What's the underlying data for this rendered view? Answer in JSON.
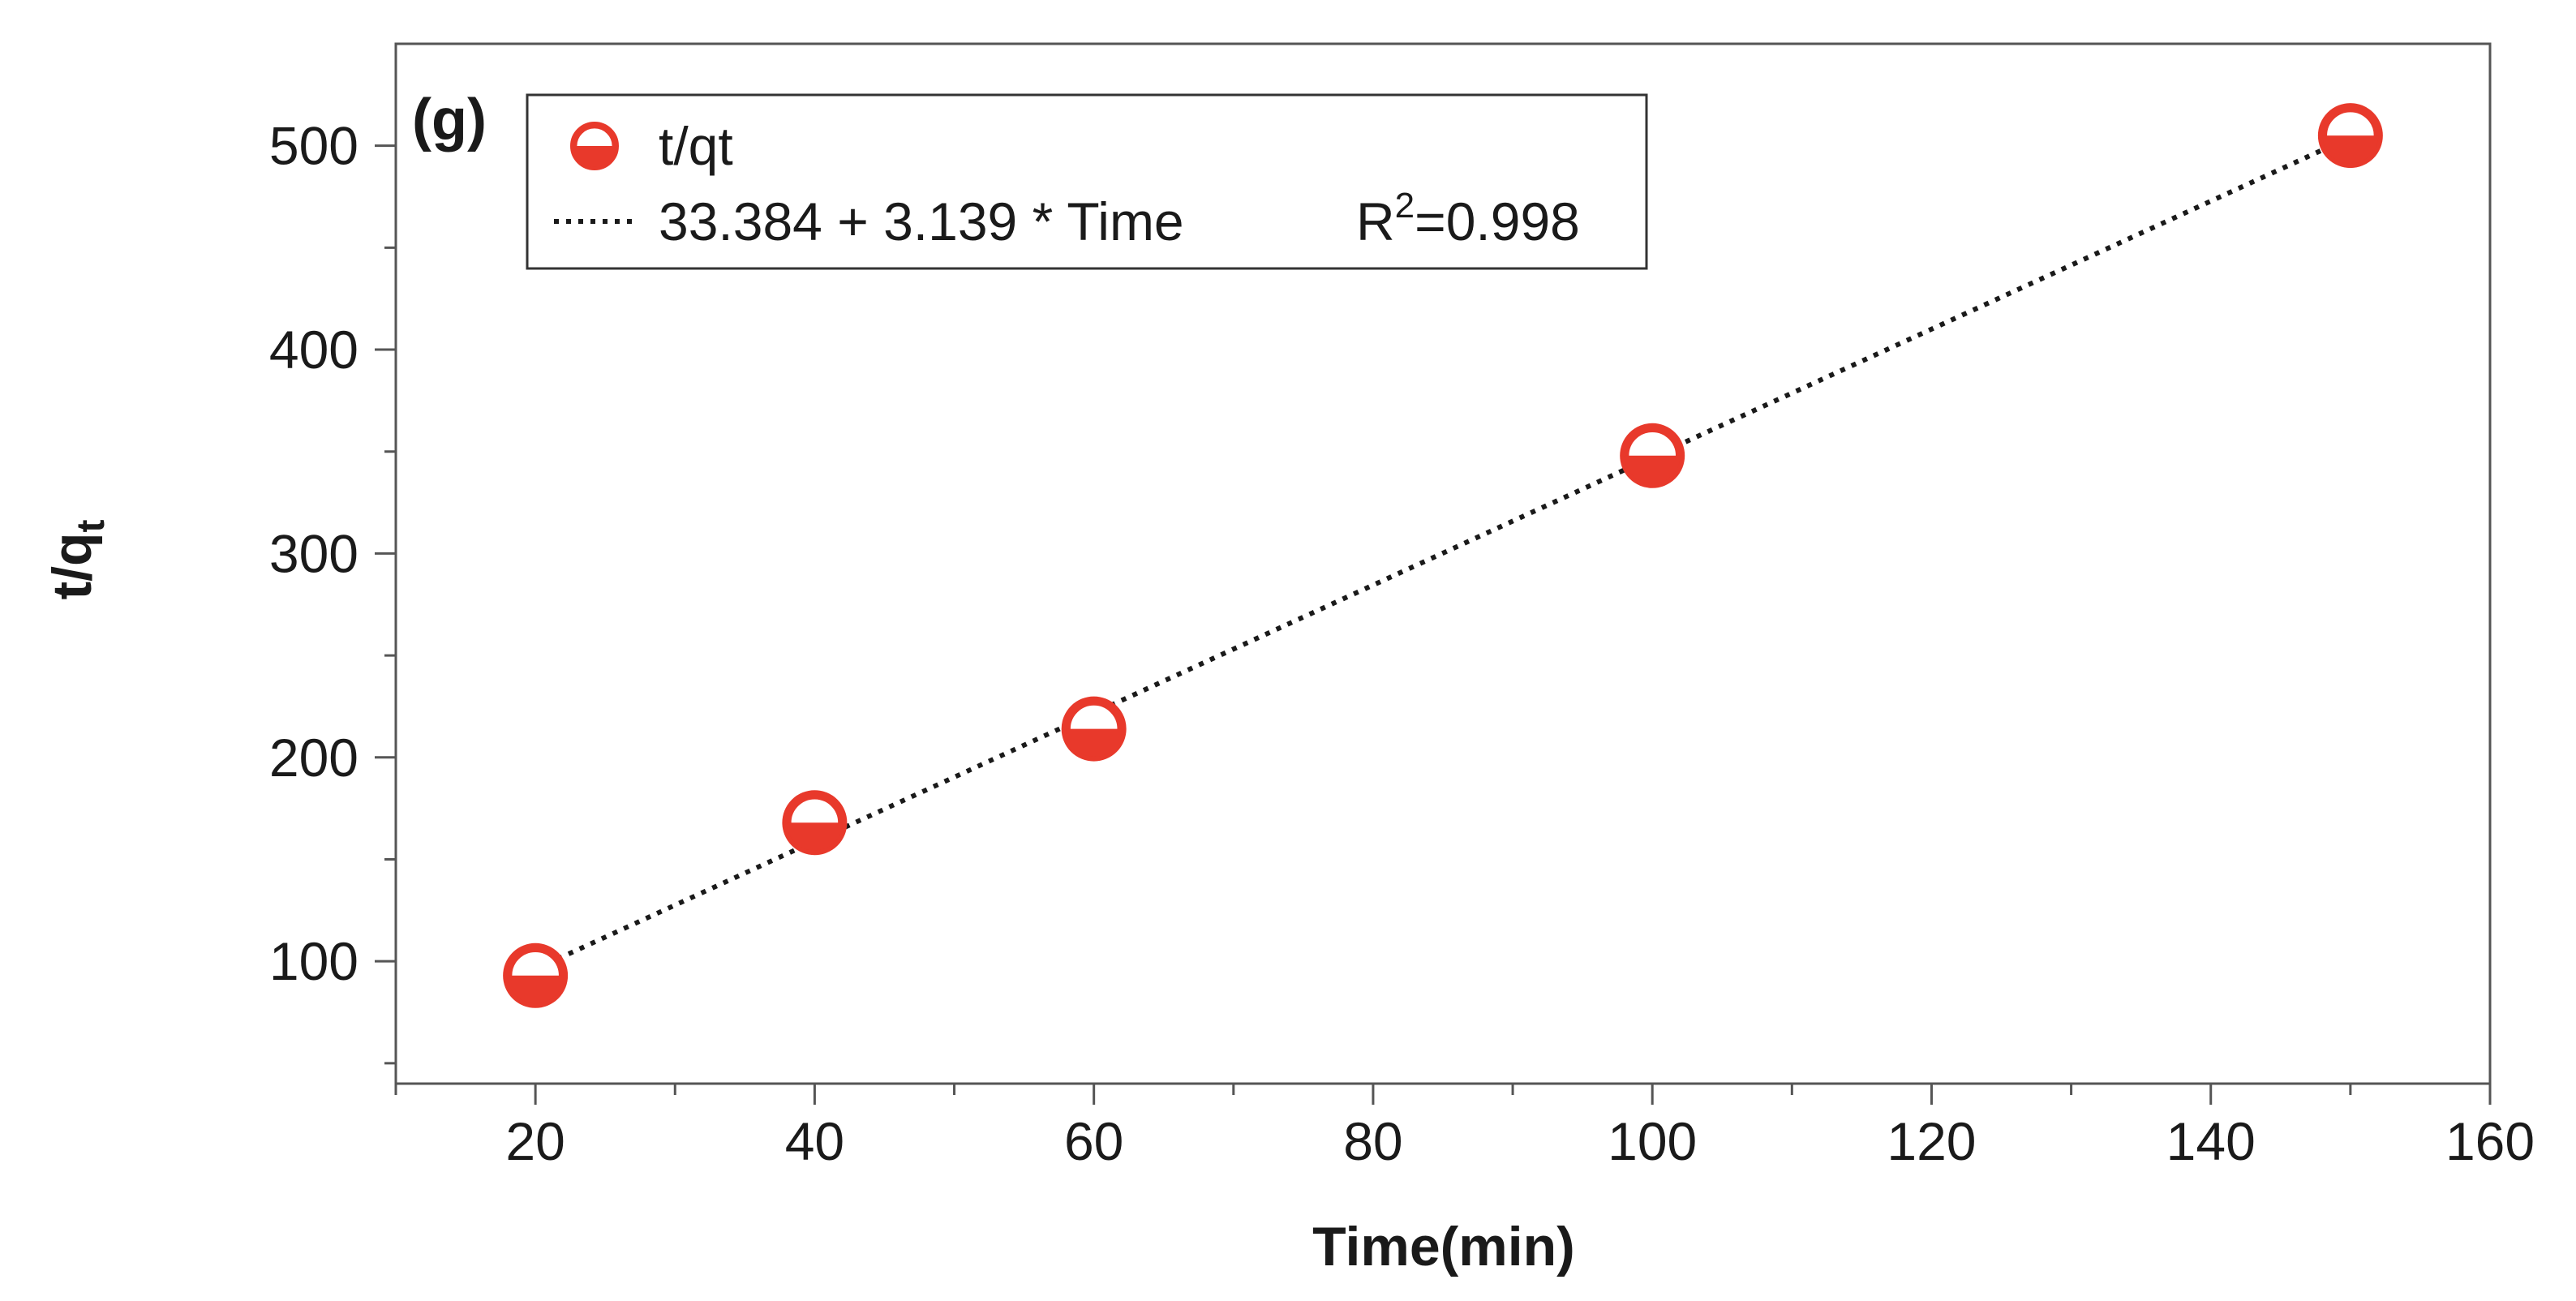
{
  "chart_data": {
    "type": "scatter",
    "panel_label": "(g)",
    "xlabel": "Time(min)",
    "ylabel": "t/q",
    "ylabel_sub": "t",
    "xlim": [
      10,
      160
    ],
    "ylim": [
      40,
      550
    ],
    "x_ticks": [
      20,
      40,
      60,
      80,
      100,
      120,
      140,
      160
    ],
    "x_minor_ticks": [
      10,
      30,
      50,
      70,
      90,
      110,
      130,
      150
    ],
    "y_ticks": [
      100,
      200,
      300,
      400,
      500
    ],
    "y_minor_ticks": [
      50,
      150,
      250,
      350,
      450
    ],
    "series": [
      {
        "name": "t/qt",
        "marker": "half-filled-circle",
        "color": "#e8392b",
        "x": [
          20,
          40,
          60,
          100,
          150
        ],
        "y": [
          93,
          168,
          214,
          348,
          505
        ]
      }
    ],
    "fit": {
      "intercept": 33.384,
      "slope": 3.139,
      "equation_text": "33.384 + 3.139 * Time",
      "r2_prefix": "R",
      "r2_sup": "2",
      "r2_value": "=0.998",
      "line_style": "dotted",
      "color": "#1a1a1a",
      "x_range": [
        20,
        150
      ]
    },
    "legend": {
      "placement": "top-left",
      "entries": [
        "t/qt",
        "33.384 + 3.139 * Time"
      ]
    },
    "grid": false
  }
}
